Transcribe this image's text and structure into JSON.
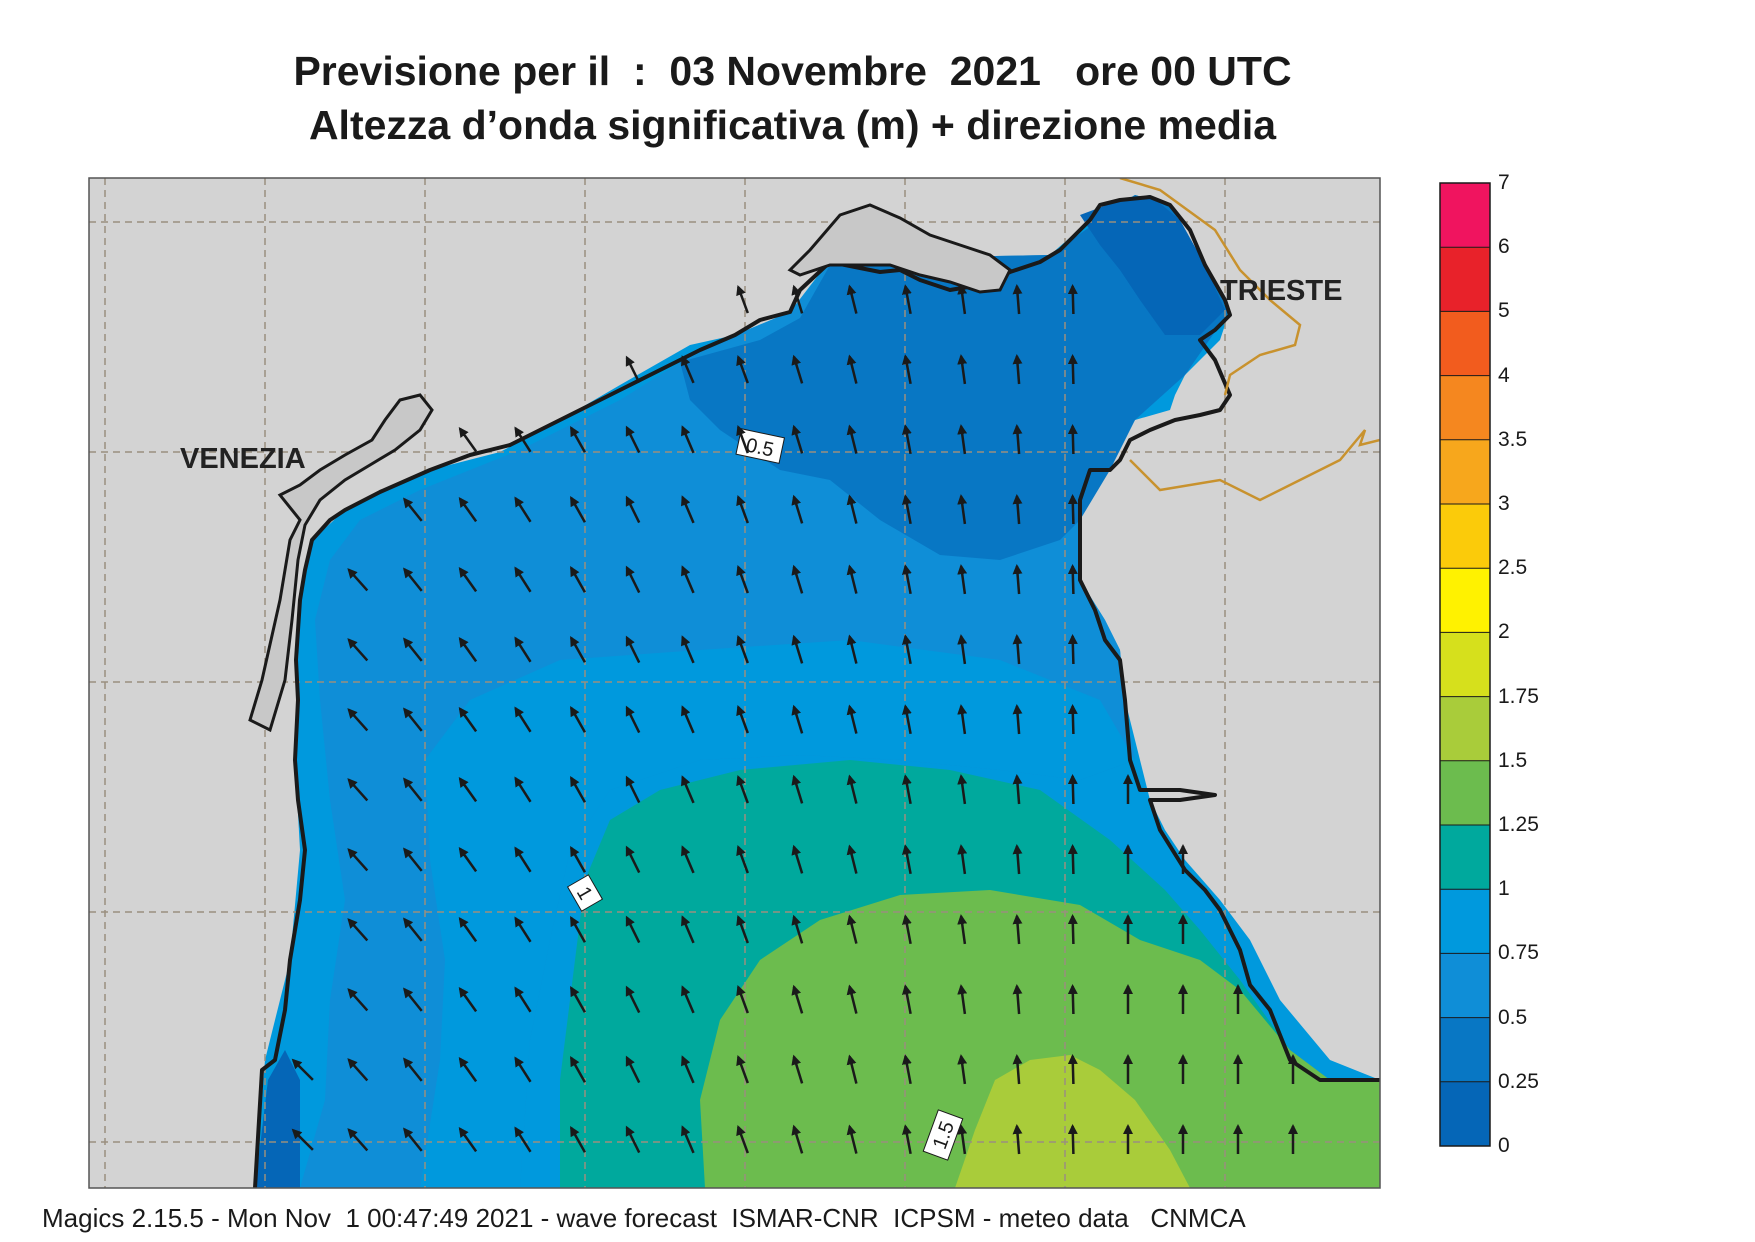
{
  "header": {
    "title_line1": "Previsione per il  :  03 Novembre  2021   ore 00 UTC",
    "title_line2": "Altezza d’onda significativa (m) + direzione media"
  },
  "map": {
    "cities": [
      {
        "name": "VENEZIA"
      },
      {
        "name": "TRIESTE"
      }
    ],
    "contour_labels": [
      "0.5",
      "1",
      "1.5"
    ],
    "colors": {
      "land": "#d3d3d3",
      "coast": "#1a1a1a",
      "border": "#c8922e",
      "grid": "#9a8f7f",
      "arrow": "#1a1a1a"
    }
  },
  "colorbar": {
    "labels": [
      "7",
      "6",
      "5",
      "4",
      "3.5",
      "3",
      "2.5",
      "2",
      "1.75",
      "1.5",
      "1.25",
      "1",
      "0.75",
      "0.5",
      "0.25",
      "0"
    ],
    "colors": [
      "#f0145f",
      "#e8222a",
      "#f25c1e",
      "#f5871f",
      "#f7a71c",
      "#fbcb0a",
      "#fff200",
      "#d6e01c",
      "#a9cc3a",
      "#6cbc4e",
      "#00a99d",
      "#0099dd",
      "#0f8ed7",
      "#0877c4",
      "#0566b7"
    ]
  },
  "footer": {
    "text": "Magics 2.15.5 - Mon Nov  1 00:47:49 2021 - wave forecast  ISMAR-CNR  ICPSM - meteo data   CNMCA"
  }
}
